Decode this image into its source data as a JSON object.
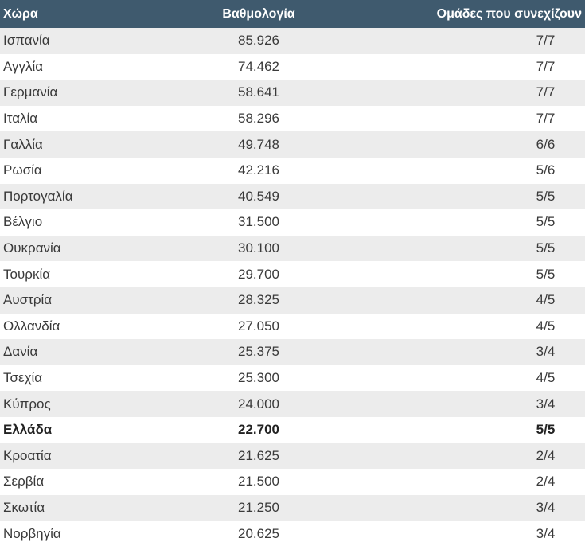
{
  "table": {
    "headers": {
      "country": "Χώρα",
      "score": "Βαθμολογία",
      "teams": "Ομάδες που συνεχίζουν"
    },
    "rows": [
      {
        "country": "Ισπανία",
        "score": "85.926",
        "teams": "7/7"
      },
      {
        "country": "Αγγλία",
        "score": "74.462",
        "teams": "7/7"
      },
      {
        "country": "Γερμανία",
        "score": "58.641",
        "teams": "7/7"
      },
      {
        "country": "Ιταλία",
        "score": "58.296",
        "teams": "7/7"
      },
      {
        "country": "Γαλλία",
        "score": "49.748",
        "teams": "6/6"
      },
      {
        "country": "Ρωσία",
        "score": "42.216",
        "teams": "5/6"
      },
      {
        "country": "Πορτογαλία",
        "score": "40.549",
        "teams": "5/5"
      },
      {
        "country": "Βέλγιο",
        "score": "31.500",
        "teams": "5/5"
      },
      {
        "country": "Ουκρανία",
        "score": "30.100",
        "teams": "5/5"
      },
      {
        "country": "Τουρκία",
        "score": "29.700",
        "teams": "5/5"
      },
      {
        "country": "Αυστρία",
        "score": "28.325",
        "teams": "4/5"
      },
      {
        "country": "Ολλανδία",
        "score": "27.050",
        "teams": "4/5"
      },
      {
        "country": "Δανία",
        "score": "25.375",
        "teams": "3/4"
      },
      {
        "country": "Τσεχία",
        "score": "25.300",
        "teams": "4/5"
      },
      {
        "country": "Κύπρος",
        "score": "24.000",
        "teams": "3/4"
      },
      {
        "country": "Ελλάδα",
        "score": "22.700",
        "teams": "5/5",
        "highlight": true
      },
      {
        "country": "Κροατία",
        "score": "21.625",
        "teams": "2/4"
      },
      {
        "country": "Σερβία",
        "score": "21.500",
        "teams": "2/4"
      },
      {
        "country": "Σκωτία",
        "score": "21.250",
        "teams": "3/4"
      },
      {
        "country": "Νορβηγία",
        "score": "20.625",
        "teams": "3/4"
      }
    ]
  },
  "colors": {
    "header_bg": "#3f5a6e",
    "row_alt": "#ececec",
    "text": "#3a3a3a"
  }
}
